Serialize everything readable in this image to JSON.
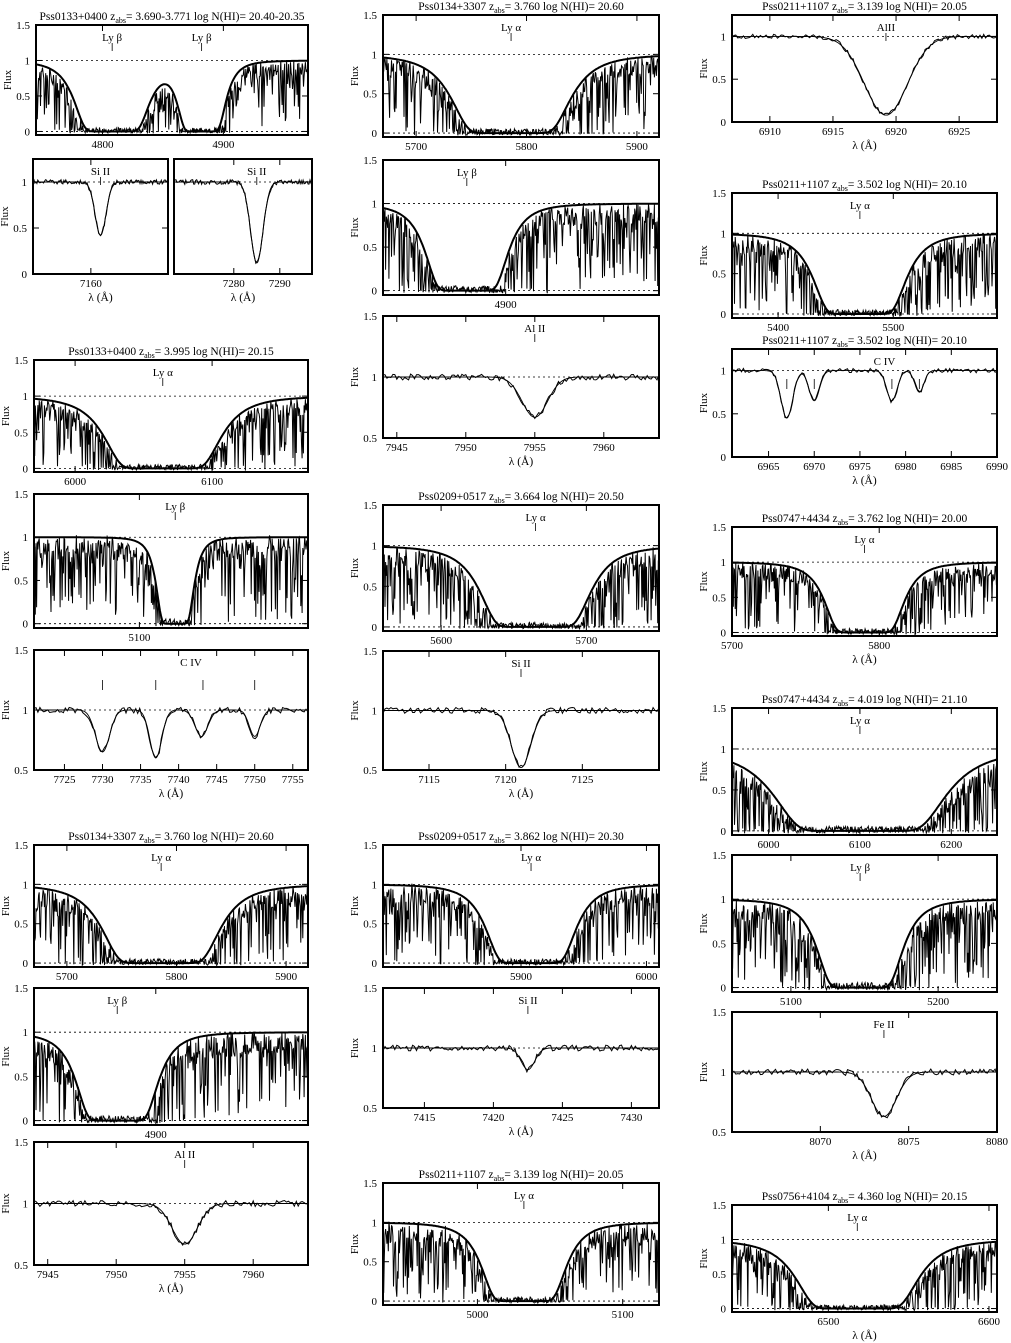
{
  "figure": {
    "y_axis_label": "Flux",
    "x_axis_label": "λ (Å)",
    "line_color": "#000000",
    "background": "#ffffff"
  },
  "chart_data": [
    {
      "type": "line",
      "title": "Pss0133+0400  z_abs= 3.690-3.771  log N(HI)= 20.40-20.35",
      "ion_labels": [
        "Ly β",
        "Ly β"
      ],
      "xlim": [
        4745,
        4970
      ],
      "ylim": [
        -0.05,
        1.5
      ],
      "xticks": [
        4800,
        4900
      ],
      "yticks": [
        0,
        0.5,
        1,
        1.5
      ],
      "xlabel": "",
      "ylabel": "Flux",
      "profile": {
        "centers": [
          4808,
          4882
        ],
        "halfwidth": [
          14,
          9
        ],
        "depth": 1
      }
    },
    {
      "type": "line",
      "title": "",
      "ion_labels": [
        "Si II"
      ],
      "xlim": [
        7148,
        7176
      ],
      "ylim": [
        0,
        1.25
      ],
      "xticks": [
        7160
      ],
      "yticks": [
        0,
        0.5,
        1
      ],
      "xlabel": "λ (Å)",
      "ylabel": "Flux",
      "profile": {
        "centers": [
          7162
        ],
        "halfwidth": [
          1.6
        ],
        "depth": 0.58
      }
    },
    {
      "type": "line",
      "title": "",
      "ion_labels": [
        "Si II"
      ],
      "xlim": [
        7267,
        7297
      ],
      "ylim": [
        0,
        1.25
      ],
      "xticks": [
        7280,
        7290
      ],
      "yticks": [],
      "xlabel": "λ (Å)",
      "ylabel": "",
      "profile": {
        "centers": [
          7285
        ],
        "halfwidth": [
          1.9
        ],
        "depth": 0.88
      }
    },
    {
      "type": "line",
      "title": "Pss0133+0400  z_abs= 3.995  log N(HI)= 20.15",
      "ion_labels": [
        "Ly α"
      ],
      "xlim": [
        5970,
        6170
      ],
      "ylim": [
        -0.05,
        1.5
      ],
      "xticks": [
        6000,
        6100
      ],
      "yticks": [
        0,
        0.5,
        1,
        1.5
      ],
      "xlabel": "",
      "ylabel": "Flux",
      "profile": {
        "centers": [
          6064
        ],
        "halfwidth": [
          19
        ],
        "depth": 1
      }
    },
    {
      "type": "line",
      "title": "",
      "ion_labels": [
        "Ly β"
      ],
      "xlim": [
        5050,
        5180
      ],
      "ylim": [
        -0.05,
        1.5
      ],
      "xticks": [
        5100
      ],
      "yticks": [
        0,
        0.5,
        1,
        1.5
      ],
      "xlabel": "",
      "ylabel": "Flux",
      "profile": {
        "centers": [
          5117
        ],
        "halfwidth": [
          4
        ],
        "depth": 1
      }
    },
    {
      "type": "line",
      "title": "",
      "ion_labels": [
        "C IV"
      ],
      "xlim": [
        7721,
        7757
      ],
      "ylim": [
        0.5,
        1.5
      ],
      "xticks": [
        7725,
        7730,
        7735,
        7740,
        7745,
        7750,
        7755
      ],
      "yticks": [
        0.5,
        1,
        1.5
      ],
      "xlabel": "λ (Å)",
      "ylabel": "Flux",
      "profile": {
        "centers": [
          7730,
          7737,
          7743,
          7750
        ],
        "halfwidth": [
          1.3,
          1.1,
          1.2,
          1.0
        ],
        "depth": [
          0.35,
          0.4,
          0.22,
          0.22
        ]
      },
      "ticks": [
        7730,
        7737,
        7743.2,
        7750
      ]
    },
    {
      "type": "line",
      "title": "Pss0134+3307  z_abs= 3.760  log N(HI)= 20.60",
      "ion_labels": [
        "Ly α"
      ],
      "xlim": [
        5670,
        5920
      ],
      "ylim": [
        -0.05,
        1.5
      ],
      "xticks": [
        5700,
        5800,
        5900
      ],
      "yticks": [
        0,
        0.5,
        1,
        1.5
      ],
      "xlabel": "",
      "ylabel": "Flux",
      "profile": {
        "centers": [
          5786
        ],
        "halfwidth": [
          24
        ],
        "depth": 1
      }
    },
    {
      "type": "line",
      "title": "",
      "ion_labels": [
        "Ly β"
      ],
      "xlim": [
        4840,
        4975
      ],
      "ylim": [
        -0.05,
        1.5
      ],
      "xticks": [
        4900
      ],
      "yticks": [
        0,
        0.5,
        1,
        1.5
      ],
      "xlabel": "",
      "ylabel": "Flux",
      "profile": {
        "centers": [
          4881
        ],
        "halfwidth": [
          9
        ],
        "depth": 1
      }
    },
    {
      "type": "line",
      "title": "",
      "ion_labels": [
        "Al II"
      ],
      "xlim": [
        7944,
        7964
      ],
      "ylim": [
        0.5,
        1.5
      ],
      "xticks": [
        7945,
        7950,
        7955,
        7960
      ],
      "yticks": [
        0.5,
        1,
        1.5
      ],
      "xlabel": "λ (Å)",
      "ylabel": "Flux",
      "profile": {
        "centers": [
          7955
        ],
        "halfwidth": [
          1.3
        ],
        "depth": 0.33
      }
    },
    {
      "type": "line",
      "title": "Pss0134+3307  z_abs= 3.760  log N(HI)= 20.60",
      "ion_labels": [
        "Ly α"
      ],
      "xlim": [
        5670,
        5920
      ],
      "ylim": [
        -0.05,
        1.5
      ],
      "xticks": [
        5700,
        5800,
        5900
      ],
      "yticks": [
        0,
        0.5,
        1,
        1.5
      ],
      "xlabel": "",
      "ylabel": "Flux",
      "profile": {
        "centers": [
          5786
        ],
        "halfwidth": [
          24
        ],
        "depth": 1
      }
    },
    {
      "type": "line",
      "title": "",
      "ion_labels": [
        "Ly β"
      ],
      "xlim": [
        4840,
        4975
      ],
      "ylim": [
        -0.05,
        1.5
      ],
      "xticks": [
        4900
      ],
      "yticks": [
        0,
        0.5,
        1,
        1.5
      ],
      "xlabel": "",
      "ylabel": "Flux",
      "profile": {
        "centers": [
          4881
        ],
        "halfwidth": [
          9
        ],
        "depth": 1
      }
    },
    {
      "type": "line",
      "title": "",
      "ion_labels": [
        "Al II"
      ],
      "xlim": [
        7944,
        7964
      ],
      "ylim": [
        0.5,
        1.5
      ],
      "xticks": [
        7945,
        7950,
        7955,
        7960
      ],
      "yticks": [
        0.5,
        1,
        1.5
      ],
      "xlabel": "λ (Å)",
      "ylabel": "Flux",
      "profile": {
        "centers": [
          7955
        ],
        "halfwidth": [
          1.3
        ],
        "depth": 0.33
      }
    },
    {
      "type": "line",
      "title": "Pss0209+0517  z_abs= 3.664  log N(HI)= 20.50",
      "ion_labels": [
        "Ly α"
      ],
      "xlim": [
        5560,
        5750
      ],
      "ylim": [
        -0.05,
        1.5
      ],
      "xticks": [
        5600,
        5700
      ],
      "yticks": [
        0,
        0.5,
        1,
        1.5
      ],
      "xlabel": "",
      "ylabel": "Flux",
      "profile": {
        "centers": [
          5665
        ],
        "halfwidth": [
          17
        ],
        "depth": 1
      }
    },
    {
      "type": "line",
      "title": "",
      "ion_labels": [
        "Si II"
      ],
      "xlim": [
        7112,
        7130
      ],
      "ylim": [
        0.5,
        1.5
      ],
      "xticks": [
        7115,
        7120,
        7125
      ],
      "yticks": [
        0.5,
        1,
        1.5
      ],
      "xlabel": "λ (Å)",
      "ylabel": "Flux",
      "profile": {
        "centers": [
          7121
        ],
        "halfwidth": [
          0.9
        ],
        "depth": 0.48
      }
    },
    {
      "type": "line",
      "title": "Pss0209+0517  z_abs= 3.862  log N(HI)= 20.30",
      "ion_labels": [
        "Ly α"
      ],
      "xlim": [
        5790,
        6010
      ],
      "ylim": [
        -0.05,
        1.5
      ],
      "xticks": [
        5900,
        6000
      ],
      "yticks": [
        0,
        0.5,
        1,
        1.5
      ],
      "xlabel": "",
      "ylabel": "Flux",
      "profile": {
        "centers": [
          5908
        ],
        "halfwidth": [
          16
        ],
        "depth": 1
      }
    },
    {
      "type": "line",
      "title": "",
      "ion_labels": [
        "Si II"
      ],
      "xlim": [
        7412,
        7432
      ],
      "ylim": [
        0.5,
        1.5
      ],
      "xticks": [
        7415,
        7420,
        7425,
        7430
      ],
      "yticks": [
        0.5,
        1,
        1.5
      ],
      "xlabel": "λ (Å)",
      "ylabel": "Flux",
      "profile": {
        "centers": [
          7422.5
        ],
        "halfwidth": [
          0.7
        ],
        "depth": 0.18
      }
    },
    {
      "type": "line",
      "title": "Pss0211+1107  z_abs= 3.139  log N(HI)= 20.05",
      "ion_labels": [
        "Ly α"
      ],
      "xlim": [
        4935,
        5125
      ],
      "ylim": [
        -0.05,
        1.5
      ],
      "xticks": [
        5000,
        5100
      ],
      "yticks": [
        0,
        0.5,
        1,
        1.5
      ],
      "xlabel": "",
      "ylabel": "Flux",
      "profile": {
        "centers": [
          5032
        ],
        "halfwidth": [
          13
        ],
        "depth": 1
      }
    },
    {
      "type": "line",
      "title": "Pss0211+1107  z_abs= 3.139  log N(HI)= 20.05",
      "ion_labels": [
        "AlII"
      ],
      "xlim": [
        6907,
        6928
      ],
      "ylim": [
        0,
        1.25
      ],
      "xticks": [
        6910,
        6915,
        6920,
        6925
      ],
      "yticks": [
        0,
        0.5,
        1
      ],
      "xlabel": "λ (Å)",
      "ylabel": "Flux",
      "profile": {
        "centers": [
          6919.2
        ],
        "halfwidth": [
          2.4
        ],
        "depth": 0.92
      }
    },
    {
      "type": "line",
      "title": "Pss0211+1107  z_abs= 3.502  log N(HI)= 20.10",
      "ion_labels": [
        "Ly α"
      ],
      "xlim": [
        5360,
        5590
      ],
      "ylim": [
        -0.05,
        1.5
      ],
      "xticks": [
        5400,
        5500
      ],
      "yticks": [
        0,
        0.5,
        1,
        1.5
      ],
      "xlabel": "",
      "ylabel": "Flux",
      "profile": {
        "centers": [
          5471
        ],
        "halfwidth": [
          18
        ],
        "depth": 1
      }
    },
    {
      "type": "line",
      "title": "Pss0211+1107  z_abs= 3.502  log N(HI)= 20.10",
      "ion_labels": [
        "C IV"
      ],
      "xlim": [
        6961,
        6990
      ],
      "ylim": [
        0,
        1.25
      ],
      "xticks": [
        6965,
        6970,
        6975,
        6980,
        6985,
        6990
      ],
      "yticks": [
        0,
        0.5,
        1
      ],
      "xlabel": "λ (Å)",
      "ylabel": "Flux",
      "profile": {
        "centers": [
          6967,
          6970,
          6978.5,
          6981.5
        ],
        "halfwidth": [
          0.9,
          0.8,
          0.8,
          0.7
        ],
        "depth": [
          0.55,
          0.35,
          0.35,
          0.25
        ]
      },
      "ticks": [
        6967,
        6970,
        6978.5,
        6981.5
      ]
    },
    {
      "type": "line",
      "title": "Pss0747+4434  z_abs= 3.762  log N(HI)= 20.00",
      "ion_labels": [
        "Ly α"
      ],
      "xlim": [
        5700,
        5880
      ],
      "ylim": [
        -0.05,
        1.5
      ],
      "xticks": [
        5700,
        5800
      ],
      "yticks": [
        0,
        0.5,
        1,
        1.5
      ],
      "xlabel": "λ (Å)",
      "ylabel": "Flux",
      "profile": {
        "centers": [
          5790
        ],
        "halfwidth": [
          12
        ],
        "depth": 1
      }
    },
    {
      "type": "line",
      "title": "Pss0747+4434  z_abs= 4.019  log N(HI)= 21.10",
      "ion_labels": [
        "Ly α"
      ],
      "xlim": [
        5960,
        6250
      ],
      "ylim": [
        -0.05,
        1.5
      ],
      "xticks": [
        6000,
        6100,
        6200
      ],
      "yticks": [
        0,
        0.5,
        1,
        1.5
      ],
      "xlabel": "",
      "ylabel": "Flux",
      "profile": {
        "centers": [
          6100
        ],
        "halfwidth": [
          42
        ],
        "depth": 1
      }
    },
    {
      "type": "line",
      "title": "",
      "ion_labels": [
        "Ly β"
      ],
      "xlim": [
        5060,
        5240
      ],
      "ylim": [
        -0.05,
        1.5
      ],
      "xticks": [
        5100,
        5200
      ],
      "yticks": [
        0,
        0.5,
        1,
        1.5
      ],
      "xlabel": "",
      "ylabel": "Flux",
      "profile": {
        "centers": [
          5147
        ],
        "halfwidth": [
          13
        ],
        "depth": 1
      }
    },
    {
      "type": "line",
      "title": "",
      "ion_labels": [
        "Fe II"
      ],
      "xlim": [
        8065,
        8080
      ],
      "ylim": [
        0.5,
        1.5
      ],
      "xticks": [
        8070,
        8075,
        8080
      ],
      "yticks": [
        0.5,
        1,
        1.5
      ],
      "xlabel": "λ (Å)",
      "ylabel": "Flux",
      "profile": {
        "centers": [
          8073.6
        ],
        "halfwidth": [
          1.0
        ],
        "depth": 0.37
      }
    },
    {
      "type": "line",
      "title": "Pss0756+4104  z_abs= 4.360  log N(HI)= 20.15",
      "ion_labels": [
        "Ly α"
      ],
      "xlim": [
        6440,
        6605
      ],
      "ylim": [
        -0.05,
        1.5
      ],
      "xticks": [
        6500,
        6600
      ],
      "yticks": [
        0,
        0.5,
        1,
        1.5
      ],
      "xlabel": "λ (Å)",
      "ylabel": "Flux",
      "profile": {
        "centers": [
          6518
        ],
        "halfwidth": [
          17
        ],
        "depth": 1
      }
    }
  ]
}
